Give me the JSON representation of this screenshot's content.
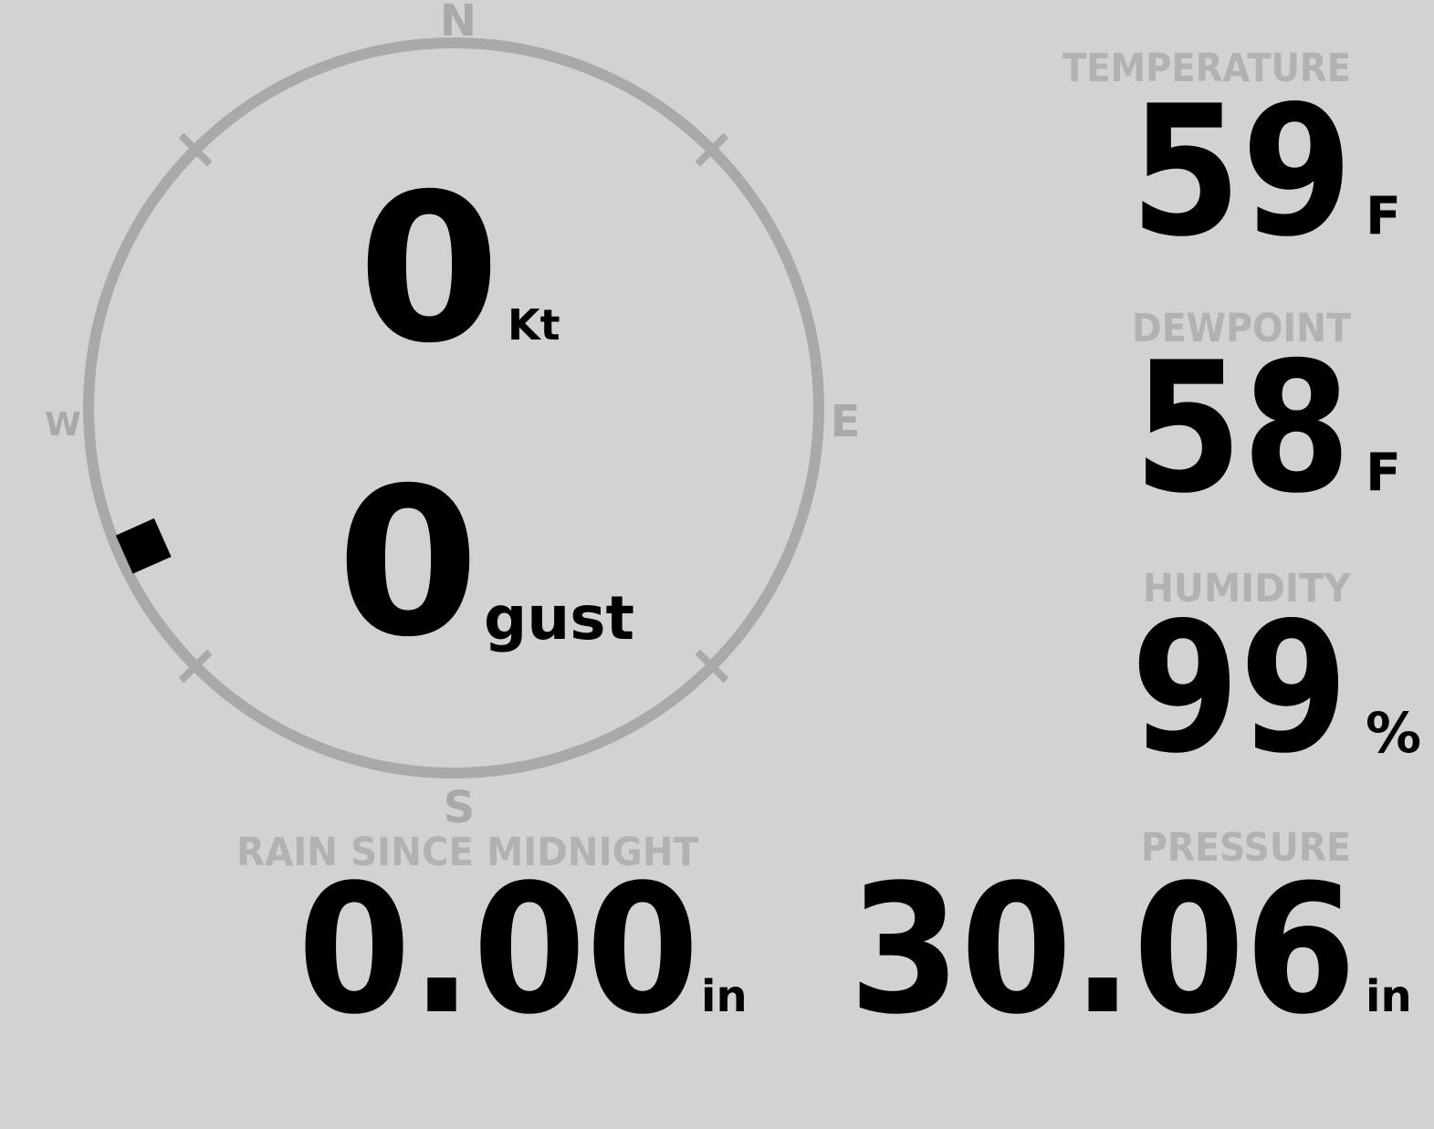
{
  "display": {
    "background_color": "#d2d2d2",
    "gauge_ring_color": "#a9a9a9",
    "label_color": "#b2b2b2",
    "value_color": "#000000",
    "marker_color": "#000000"
  },
  "compass": {
    "cardinal": {
      "north": "N",
      "east": "E",
      "south": "S",
      "west": "W"
    },
    "wind_speed": {
      "value": "0",
      "unit": "Kt"
    },
    "wind_gust": {
      "value": "0",
      "unit": "gust"
    },
    "direction_deg": 246
  },
  "metrics": {
    "temperature": {
      "label": "TEMPERATURE",
      "value": "59",
      "unit": "F"
    },
    "dewpoint": {
      "label": "DEWPOINT",
      "value": "58",
      "unit": "F"
    },
    "humidity": {
      "label": "HUMIDITY",
      "value": "99",
      "unit": "%"
    },
    "rain": {
      "label": "RAIN SINCE MIDNIGHT",
      "value": "0.00",
      "unit": "in"
    },
    "pressure": {
      "label": "PRESSURE",
      "value": "30.06",
      "unit": "in"
    }
  }
}
